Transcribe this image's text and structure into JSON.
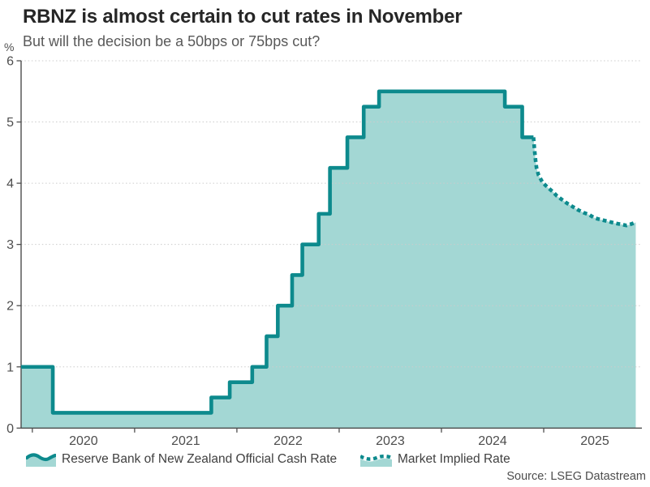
{
  "chart_data": {
    "type": "line",
    "title": "RBNZ is almost certain to cut rates in November",
    "subtitle": "But will the decision be a 50bps or 75bps cut?",
    "ylabel": "%",
    "source": "Source: LSEG Datastream",
    "ylim": [
      0,
      6
    ],
    "yticks": [
      0,
      1,
      2,
      3,
      4,
      5,
      6
    ],
    "xlim": [
      2019.89,
      2025.96
    ],
    "xticks": [
      2020,
      2021,
      2022,
      2023,
      2024,
      2025
    ],
    "grid": "horizontal-dotted",
    "legend_position": "bottom",
    "colors": {
      "line": "#0D8A8D",
      "area_fill": "#A3D7D4",
      "axis": "#4d4d4d",
      "grid": "#cccccc",
      "tick_label": "#4d4d4d"
    },
    "series": [
      {
        "name": "Reserve Bank of New Zealand Official Cash Rate",
        "style": "solid-step-area",
        "points": [
          [
            2019.89,
            1.0
          ],
          [
            2020.2,
            0.25
          ],
          [
            2021.75,
            0.5
          ],
          [
            2021.93,
            0.75
          ],
          [
            2022.15,
            1.0
          ],
          [
            2022.29,
            1.5
          ],
          [
            2022.4,
            2.0
          ],
          [
            2022.54,
            2.5
          ],
          [
            2022.64,
            3.0
          ],
          [
            2022.8,
            3.5
          ],
          [
            2022.91,
            4.25
          ],
          [
            2023.08,
            4.75
          ],
          [
            2023.24,
            5.25
          ],
          [
            2023.39,
            5.5
          ],
          [
            2024.62,
            5.25
          ],
          [
            2024.79,
            4.75
          ],
          [
            2024.9,
            4.75
          ]
        ]
      },
      {
        "name": "Market Implied Rate",
        "style": "dotted-line-area",
        "points": [
          [
            2024.9,
            4.75
          ],
          [
            2024.91,
            4.55
          ],
          [
            2024.92,
            4.38
          ],
          [
            2024.93,
            4.25
          ],
          [
            2024.95,
            4.13
          ],
          [
            2024.99,
            4.01
          ],
          [
            2025.04,
            3.93
          ],
          [
            2025.09,
            3.86
          ],
          [
            2025.13,
            3.79
          ],
          [
            2025.18,
            3.73
          ],
          [
            2025.23,
            3.67
          ],
          [
            2025.28,
            3.62
          ],
          [
            2025.34,
            3.56
          ],
          [
            2025.39,
            3.52
          ],
          [
            2025.45,
            3.48
          ],
          [
            2025.5,
            3.43
          ],
          [
            2025.57,
            3.4
          ],
          [
            2025.62,
            3.38
          ],
          [
            2025.69,
            3.35
          ],
          [
            2025.75,
            3.33
          ],
          [
            2025.81,
            3.31
          ],
          [
            2025.85,
            3.33
          ],
          [
            2025.9,
            3.36
          ]
        ]
      }
    ]
  }
}
